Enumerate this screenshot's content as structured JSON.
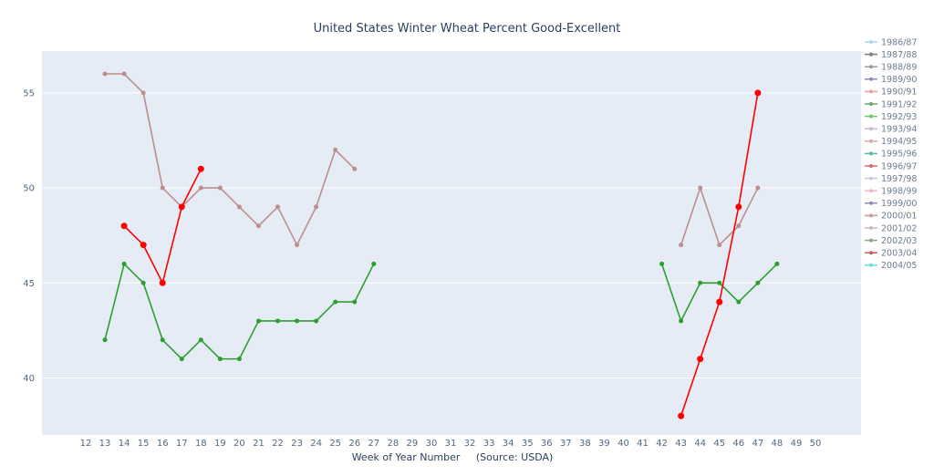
{
  "chart_data": {
    "type": "line",
    "title": "United States Winter Wheat Percent Good-Excellent",
    "xlabel": "Week of Year Number     (Source: USDA)",
    "ylabel": "",
    "x_categories": [
      "12",
      "13",
      "14",
      "15",
      "16",
      "17",
      "18",
      "19",
      "20",
      "21",
      "22",
      "23",
      "24",
      "25",
      "26",
      "27",
      "28",
      "29",
      "30",
      "31",
      "32",
      "33",
      "34",
      "35",
      "36",
      "37",
      "38",
      "39",
      "40",
      "41",
      "42",
      "43",
      "44",
      "45",
      "46",
      "47",
      "48",
      "49",
      "50"
    ],
    "y_ticks": [
      40,
      45,
      50,
      55
    ],
    "ylim": [
      37.0,
      57.2
    ],
    "grid": true,
    "legend_position": "right",
    "legend": [
      {
        "name": "1986/87",
        "color": "#aed6f1"
      },
      {
        "name": "1987/88",
        "color": "#7a7a7a"
      },
      {
        "name": "1988/89",
        "color": "#9a9a9a"
      },
      {
        "name": "1989/90",
        "color": "#8e8eb5"
      },
      {
        "name": "1990/91",
        "color": "#e8a0a0"
      },
      {
        "name": "1991/92",
        "color": "#6aa86a"
      },
      {
        "name": "1992/93",
        "color": "#66cc66"
      },
      {
        "name": "1993/94",
        "color": "#c9b8d8"
      },
      {
        "name": "1994/95",
        "color": "#d8a8a8"
      },
      {
        "name": "1995/96",
        "color": "#5cb8a8"
      },
      {
        "name": "1996/97",
        "color": "#e06666"
      },
      {
        "name": "1997/98",
        "color": "#c8c8e8"
      },
      {
        "name": "1998/99",
        "color": "#f0b8c8"
      },
      {
        "name": "1999/00",
        "color": "#9a8ab0"
      },
      {
        "name": "2000/01",
        "color": "#c89a9a"
      },
      {
        "name": "2001/02",
        "color": "#c8b8c8"
      },
      {
        "name": "2002/03",
        "color": "#8aa88a"
      },
      {
        "name": "2003/04",
        "color": "#d05a6a"
      },
      {
        "name": "2004/05",
        "color": "#66e0e0"
      }
    ],
    "series": [
      {
        "color": "#bc8f8f",
        "marker_size": 2.5,
        "segments": [
          {
            "x": [
              "13",
              "14",
              "15",
              "16",
              "17",
              "18",
              "19",
              "20",
              "21",
              "22",
              "23",
              "24",
              "25",
              "26"
            ],
            "y": [
              56,
              56,
              55,
              50,
              49,
              50,
              50,
              49,
              48,
              49,
              47,
              49,
              52,
              51
            ]
          },
          {
            "x": [
              "43",
              "44",
              "45",
              "46",
              "47"
            ],
            "y": [
              47,
              50,
              47,
              48,
              50
            ]
          }
        ]
      },
      {
        "color": "#2ca02c",
        "marker_size": 2.5,
        "segments": [
          {
            "x": [
              "13",
              "14",
              "15",
              "16",
              "17",
              "18",
              "19",
              "20",
              "21",
              "22",
              "23",
              "24",
              "25",
              "26",
              "27"
            ],
            "y": [
              42,
              46,
              45,
              42,
              41,
              42,
              41,
              41,
              43,
              43,
              43,
              43,
              44,
              44,
              46
            ]
          },
          {
            "x": [
              "42",
              "43",
              "44",
              "45",
              "46",
              "47",
              "48"
            ],
            "y": [
              46,
              43,
              45,
              45,
              44,
              45,
              46
            ]
          }
        ]
      },
      {
        "color": "#ff0000",
        "marker_size": 3.5,
        "segments": [
          {
            "x": [
              "14",
              "15",
              "16",
              "17",
              "18"
            ],
            "y": [
              48,
              47,
              45,
              49,
              51
            ]
          },
          {
            "x": [
              "43",
              "44",
              "45",
              "46",
              "47"
            ],
            "y": [
              38,
              41,
              44,
              49,
              55
            ]
          }
        ]
      }
    ]
  }
}
